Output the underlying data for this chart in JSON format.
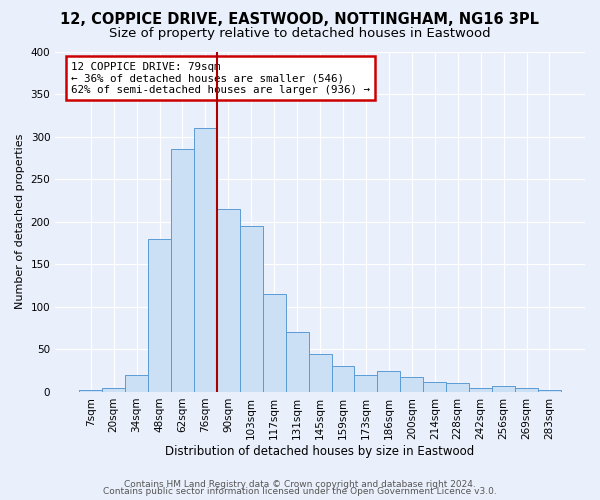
{
  "title": "12, COPPICE DRIVE, EASTWOOD, NOTTINGHAM, NG16 3PL",
  "subtitle": "Size of property relative to detached houses in Eastwood",
  "xlabel": "Distribution of detached houses by size in Eastwood",
  "ylabel": "Number of detached properties",
  "bar_labels": [
    "7sqm",
    "20sqm",
    "34sqm",
    "48sqm",
    "62sqm",
    "76sqm",
    "90sqm",
    "103sqm",
    "117sqm",
    "131sqm",
    "145sqm",
    "159sqm",
    "173sqm",
    "186sqm",
    "200sqm",
    "214sqm",
    "228sqm",
    "242sqm",
    "256sqm",
    "269sqm",
    "283sqm"
  ],
  "bar_heights": [
    2,
    5,
    20,
    180,
    285,
    310,
    215,
    195,
    115,
    70,
    45,
    30,
    20,
    25,
    18,
    12,
    10,
    5,
    7,
    5,
    2
  ],
  "bar_color": "#cce0f5",
  "bar_edge_color": "#5b9bd5",
  "vline_index": 5,
  "vline_color": "#aa0000",
  "annotation_text": "12 COPPICE DRIVE: 79sqm\n← 36% of detached houses are smaller (546)\n62% of semi-detached houses are larger (936) →",
  "annotation_box_color": "#ffffff",
  "annotation_box_edge": "#cc0000",
  "ylim": [
    0,
    400
  ],
  "yticks": [
    0,
    50,
    100,
    150,
    200,
    250,
    300,
    350,
    400
  ],
  "footer1": "Contains HM Land Registry data © Crown copyright and database right 2024.",
  "footer2": "Contains public sector information licensed under the Open Government Licence v3.0.",
  "bg_color": "#eaf0fb",
  "plot_bg_color": "#eaf0fb",
  "title_fontsize": 10.5,
  "subtitle_fontsize": 9.5,
  "xlabel_fontsize": 8.5,
  "ylabel_fontsize": 8,
  "tick_fontsize": 7.5,
  "footer_fontsize": 6.5
}
